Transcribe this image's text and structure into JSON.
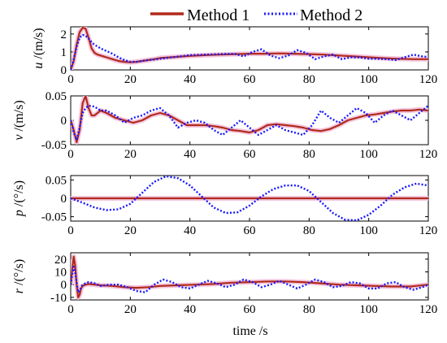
{
  "legend": [
    {
      "label": "Method 1",
      "color": "#b22a1a",
      "dash": "solid"
    },
    {
      "label": "Method 2",
      "color": "#1a1aff",
      "dash": "dotted"
    }
  ],
  "shadow_color": "#f3c6de",
  "xlabel": "time /s",
  "chart_data": [
    {
      "type": "line",
      "ylabel": "u /(m/s)",
      "xlim": [
        0,
        120
      ],
      "ylim": [
        0,
        2.4
      ],
      "xticks": [
        0,
        20,
        40,
        60,
        80,
        100,
        120
      ],
      "yticks": [
        0,
        1,
        2
      ],
      "ytick_labels": [
        "0",
        "1",
        "2"
      ],
      "series": [
        {
          "name": "Method 1",
          "x": [
            0,
            1,
            2,
            3,
            4,
            5,
            6,
            7,
            8,
            9,
            10,
            12,
            14,
            16,
            18,
            20,
            22,
            24,
            26,
            28,
            30,
            35,
            40,
            45,
            50,
            55,
            60,
            65,
            70,
            75,
            80,
            85,
            90,
            95,
            100,
            105,
            110,
            115,
            120
          ],
          "y": [
            0,
            0.5,
            1.4,
            2.1,
            2.35,
            2.3,
            1.8,
            1.2,
            0.95,
            0.85,
            0.8,
            0.7,
            0.6,
            0.5,
            0.45,
            0.42,
            0.45,
            0.5,
            0.55,
            0.6,
            0.66,
            0.72,
            0.78,
            0.82,
            0.85,
            0.88,
            0.9,
            0.9,
            0.92,
            0.9,
            0.88,
            0.85,
            0.8,
            0.75,
            0.7,
            0.65,
            0.62,
            0.6,
            0.6
          ]
        },
        {
          "name": "Method 2",
          "x": [
            0,
            1,
            2,
            3,
            4,
            5,
            6,
            7,
            8,
            9,
            10,
            12,
            14,
            16,
            18,
            20,
            22,
            24,
            26,
            28,
            30,
            35,
            40,
            45,
            50,
            55,
            58,
            61,
            64,
            67,
            70,
            73,
            76,
            79,
            82,
            85,
            88,
            91,
            94,
            97,
            100,
            103,
            106,
            109,
            112,
            115,
            118,
            120
          ],
          "y": [
            0,
            0.6,
            1.3,
            1.8,
            1.95,
            1.9,
            1.75,
            1.55,
            1.4,
            1.3,
            1.2,
            1.05,
            0.9,
            0.7,
            0.55,
            0.45,
            0.45,
            0.5,
            0.55,
            0.58,
            0.62,
            0.72,
            0.82,
            0.85,
            0.88,
            0.9,
            0.75,
            1.0,
            1.15,
            0.8,
            0.65,
            0.8,
            1.1,
            0.95,
            0.6,
            0.75,
            0.85,
            0.6,
            0.7,
            0.7,
            0.62,
            0.62,
            0.6,
            0.55,
            0.7,
            0.85,
            0.75,
            0.72
          ]
        }
      ]
    },
    {
      "type": "line",
      "ylabel": "v /(m/s)",
      "xlim": [
        0,
        120
      ],
      "ylim": [
        -0.05,
        0.05
      ],
      "xticks": [
        0,
        20,
        40,
        60,
        80,
        100,
        120
      ],
      "yticks": [
        -0.05,
        0,
        0.05
      ],
      "ytick_labels": [
        "-0.05",
        "0",
        "0.05"
      ],
      "series": [
        {
          "name": "Method 1",
          "x": [
            0,
            1,
            2,
            3,
            4,
            5,
            6,
            7,
            8,
            9,
            10,
            12,
            15,
            18,
            21,
            24,
            27,
            30,
            33,
            36,
            39,
            42,
            45,
            48,
            51,
            54,
            57,
            60,
            63,
            66,
            69,
            72,
            75,
            78,
            81,
            84,
            87,
            90,
            93,
            96,
            99,
            102,
            105,
            108,
            111,
            114,
            117,
            120
          ],
          "y": [
            0,
            -0.02,
            -0.045,
            -0.02,
            0.035,
            0.05,
            0.025,
            0.01,
            0.01,
            0.015,
            0.02,
            0.015,
            0.005,
            0,
            -0.005,
            0,
            0.01,
            0.015,
            0.01,
            0,
            -0.01,
            -0.01,
            -0.01,
            -0.012,
            -0.015,
            -0.02,
            -0.022,
            -0.025,
            -0.02,
            -0.01,
            -0.008,
            -0.01,
            -0.012,
            -0.015,
            -0.02,
            -0.022,
            -0.018,
            -0.01,
            0,
            0.005,
            0.01,
            0.012,
            0.015,
            0.018,
            0.02,
            0.02,
            0.022,
            0.02
          ]
        },
        {
          "name": "Method 2",
          "x": [
            0,
            1,
            2,
            3,
            4,
            5,
            6,
            8,
            10,
            12,
            15,
            18,
            21,
            24,
            27,
            30,
            33,
            36,
            39,
            42,
            45,
            48,
            51,
            54,
            57,
            60,
            63,
            66,
            69,
            72,
            75,
            78,
            81,
            84,
            87,
            90,
            93,
            96,
            99,
            102,
            105,
            108,
            111,
            114,
            117,
            120
          ],
          "y": [
            0,
            -0.025,
            -0.04,
            -0.015,
            0.015,
            0.025,
            0.03,
            0.028,
            0.02,
            0.02,
            0.01,
            -0.005,
            0.005,
            0.01,
            0.02,
            0.025,
            0.01,
            -0.015,
            -0.005,
            0,
            -0.005,
            -0.02,
            -0.03,
            -0.015,
            0,
            -0.015,
            -0.03,
            -0.02,
            -0.01,
            -0.02,
            -0.025,
            -0.03,
            -0.01,
            0.02,
            0.005,
            -0.005,
            0.01,
            0.025,
            0.015,
            -0.005,
            0.01,
            0.02,
            0.01,
            0.0,
            0.015,
            0.03
          ]
        }
      ]
    },
    {
      "type": "line",
      "ylabel": "p /(°/s)",
      "xlim": [
        0,
        120
      ],
      "ylim": [
        -0.062,
        0.062
      ],
      "xticks": [
        0,
        20,
        40,
        60,
        80,
        100,
        120
      ],
      "yticks": [
        -0.05,
        0,
        0.05
      ],
      "ytick_labels": [
        "-0.05",
        "0",
        "0.05"
      ],
      "series": [
        {
          "name": "Method 1",
          "x": [
            0,
            120
          ],
          "y": [
            0,
            0
          ]
        },
        {
          "name": "Method 2",
          "x": [
            0,
            4,
            8,
            12,
            16,
            20,
            24,
            28,
            32,
            36,
            40,
            44,
            48,
            52,
            56,
            60,
            64,
            68,
            72,
            76,
            80,
            84,
            88,
            92,
            96,
            100,
            104,
            108,
            112,
            116,
            120
          ],
          "y": [
            0,
            -0.012,
            -0.025,
            -0.032,
            -0.03,
            -0.015,
            0.015,
            0.045,
            0.06,
            0.055,
            0.035,
            0.005,
            -0.025,
            -0.04,
            -0.038,
            -0.02,
            0.005,
            0.025,
            0.035,
            0.035,
            0.02,
            -0.01,
            -0.04,
            -0.058,
            -0.06,
            -0.045,
            -0.02,
            0.01,
            0.03,
            0.04,
            0.035
          ]
        }
      ]
    },
    {
      "type": "line",
      "ylabel": "r /(°/s)",
      "xlim": [
        0,
        120
      ],
      "ylim": [
        -12,
        25
      ],
      "xticks": [
        0,
        20,
        40,
        60,
        80,
        100,
        120
      ],
      "yticks": [
        -10,
        0,
        10,
        20
      ],
      "ytick_labels": [
        "-10",
        "0",
        "10",
        "20"
      ],
      "series": [
        {
          "name": "Method 1",
          "x": [
            0,
            0.5,
            1,
            1.5,
            2,
            2.5,
            3,
            3.5,
            4,
            5,
            6,
            8,
            10,
            14,
            18,
            22,
            26,
            30,
            36,
            42,
            48,
            54,
            60,
            66,
            72,
            78,
            84,
            90,
            96,
            102,
            108,
            114,
            120
          ],
          "y": [
            0,
            12,
            22,
            15,
            0,
            -10,
            -8,
            -3,
            -1,
            0,
            0.5,
            0,
            -0.5,
            -1,
            -2,
            -2.5,
            -2,
            -1,
            -0.5,
            0,
            0.5,
            1.5,
            2,
            2.5,
            2.5,
            2,
            1,
            0,
            -0.5,
            -1,
            -1.5,
            -1.5,
            0
          ]
        },
        {
          "name": "Method 2",
          "x": [
            0,
            0.5,
            1,
            1.5,
            2,
            2.5,
            3,
            3.5,
            4,
            5,
            6,
            8,
            10,
            13,
            16,
            19,
            22,
            25,
            28,
            31,
            34,
            37,
            40,
            43,
            46,
            49,
            52,
            55,
            58,
            61,
            64,
            67,
            70,
            73,
            76,
            79,
            82,
            85,
            88,
            91,
            94,
            97,
            100,
            103,
            106,
            109,
            112,
            115,
            118,
            120
          ],
          "y": [
            0,
            8,
            14,
            10,
            2,
            -6,
            -5,
            -2,
            0,
            1,
            2,
            1,
            -1,
            0,
            0,
            -2,
            -5,
            -6,
            0,
            4,
            2,
            -2,
            -3,
            0,
            3,
            1,
            -2,
            0,
            4,
            2,
            -2,
            0,
            3,
            0,
            -3,
            0,
            4,
            2,
            -2,
            -1,
            2,
            1,
            -3,
            -3,
            1,
            2,
            -2,
            -4,
            -2,
            0
          ]
        }
      ]
    }
  ]
}
